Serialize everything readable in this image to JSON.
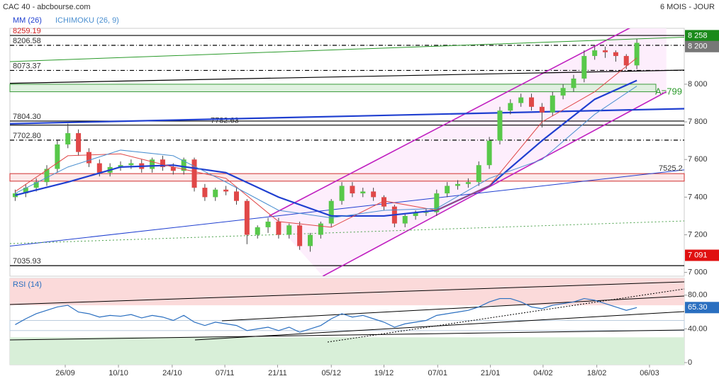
{
  "chart_data": {
    "type": "candlestick",
    "title": "CAC 40 - abcbourse.com",
    "subtitle": "6 MOIS - JOUR",
    "legend": [
      {
        "name": "MM (26)",
        "color": "#1f3fd0"
      },
      {
        "name": "ICHIMOKU (26, 9)",
        "color": "#4a8fd0"
      }
    ],
    "xlim": [
      -0.5,
      63.5
    ],
    "xticks": [
      {
        "value": 4.75,
        "label": "26/09"
      },
      {
        "value": 9.8,
        "label": "10/10"
      },
      {
        "value": 14.9,
        "label": "24/10"
      },
      {
        "value": 19.9,
        "label": "07/11"
      },
      {
        "value": 24.9,
        "label": "21/11"
      },
      {
        "value": 30,
        "label": "05/12"
      },
      {
        "value": 35,
        "label": "19/12"
      },
      {
        "value": 40.1,
        "label": "07/01"
      },
      {
        "value": 45.1,
        "label": "21/01"
      },
      {
        "value": 50.1,
        "label": "04/02"
      },
      {
        "value": 55.2,
        "label": "18/02"
      },
      {
        "value": 60.2,
        "label": "06/03"
      }
    ],
    "ylim": [
      6980,
      8297
    ],
    "yticks": [
      {
        "value": 7000,
        "label": "7 000"
      },
      {
        "value": 7200,
        "label": "7 200"
      },
      {
        "value": 7400,
        "label": "7 400"
      },
      {
        "value": 7600,
        "label": "7 600"
      },
      {
        "value": 7800,
        "label": "7 800"
      },
      {
        "value": 8000,
        "label": "8 000"
      }
    ],
    "open": [
      7400,
      7420,
      7450,
      7480,
      7550,
      7680,
      7740,
      7640,
      7580,
      7530,
      7560,
      7570,
      7580,
      7550,
      7600,
      7560,
      7540,
      7600,
      7450,
      7400,
      7440,
      7430,
      7380,
      7200,
      7240,
      7270,
      7200,
      7250,
      7140,
      7200,
      7260,
      7380,
      7460,
      7420,
      7430,
      7400,
      7350,
      7260,
      7300,
      7320,
      7320,
      7420,
      7460,
      7470,
      7480,
      7570,
      7700,
      7860,
      7900,
      7930,
      7880,
      7850,
      7940,
      7980,
      8030,
      8150,
      8180,
      8170,
      8150,
      8100
    ],
    "high": [
      7440,
      7470,
      7500,
      7570,
      7700,
      7790,
      7760,
      7660,
      7600,
      7580,
      7590,
      7600,
      7600,
      7610,
      7620,
      7580,
      7610,
      7610,
      7470,
      7450,
      7460,
      7450,
      7390,
      7250,
      7290,
      7290,
      7260,
      7270,
      7210,
      7270,
      7390,
      7480,
      7480,
      7450,
      7450,
      7410,
      7360,
      7310,
      7330,
      7340,
      7440,
      7480,
      7490,
      7500,
      7590,
      7720,
      7880,
      7920,
      7950,
      7950,
      7900,
      7960,
      8000,
      8050,
      8180,
      8200,
      8200,
      8180,
      8160,
      8240
    ],
    "low": [
      7380,
      7400,
      7430,
      7460,
      7530,
      7660,
      7620,
      7560,
      7510,
      7510,
      7540,
      7550,
      7530,
      7530,
      7540,
      7520,
      7520,
      7430,
      7380,
      7380,
      7410,
      7360,
      7150,
      7180,
      7210,
      7180,
      7180,
      7120,
      7110,
      7180,
      7240,
      7360,
      7400,
      7400,
      7380,
      7330,
      7240,
      7240,
      7280,
      7300,
      7300,
      7400,
      7440,
      7450,
      7460,
      7550,
      7680,
      7840,
      7880,
      7860,
      7770,
      7830,
      7920,
      7960,
      8010,
      8130,
      8140,
      8120,
      8080,
      8080
    ],
    "close": [
      7420,
      7450,
      7480,
      7550,
      7680,
      7740,
      7640,
      7580,
      7530,
      7560,
      7570,
      7580,
      7550,
      7600,
      7560,
      7540,
      7600,
      7450,
      7400,
      7440,
      7430,
      7380,
      7200,
      7240,
      7270,
      7200,
      7250,
      7140,
      7200,
      7260,
      7380,
      7460,
      7420,
      7430,
      7400,
      7350,
      7260,
      7300,
      7320,
      7320,
      7420,
      7460,
      7470,
      7480,
      7570,
      7700,
      7860,
      7900,
      7930,
      7880,
      7850,
      7940,
      7980,
      8030,
      8150,
      8180,
      8170,
      8150,
      8100,
      8220
    ],
    "up_color": "#58c84a",
    "down_color": "#e04848",
    "lines": [
      {
        "name": "MM (26)",
        "color": "#1f3fd0",
        "width": 2.2,
        "x": [
          0,
          5,
          10,
          15,
          20,
          25,
          30,
          35,
          40,
          45,
          50,
          55,
          59
        ],
        "values": [
          7410,
          7480,
          7560,
          7570,
          7530,
          7400,
          7300,
          7300,
          7330,
          7460,
          7700,
          7920,
          8020
        ]
      },
      {
        "name": "ICHIMOKU (26, 9)",
        "color": "#e04848",
        "width": 1,
        "x": [
          0,
          5,
          10,
          15,
          20,
          25,
          30,
          35,
          40,
          45,
          50,
          55,
          59
        ],
        "values": [
          7430,
          7620,
          7630,
          7560,
          7500,
          7270,
          7240,
          7380,
          7330,
          7460,
          7800,
          7960,
          8140
        ]
      },
      {
        "name": "ICHIMOKU (26, 9)",
        "color": "#4a8fd0",
        "width": 1,
        "x": [
          0,
          5,
          10,
          15,
          20,
          25,
          30,
          35,
          40,
          45,
          50,
          55,
          59
        ],
        "values": [
          7420,
          7560,
          7650,
          7620,
          7480,
          7330,
          7290,
          7330,
          7340,
          7500,
          7600,
          7840,
          7990
        ]
      }
    ],
    "levels": [
      {
        "value": 8259.19,
        "label": "8259.19",
        "color": "#000",
        "dash": ""
      },
      {
        "value": 8206.58,
        "label": "8206.58",
        "color": "#000",
        "dash": "6 3 1 3"
      },
      {
        "value": 8073.37,
        "label": "8073.37",
        "color": "#000",
        "dash": "6 3 1 3"
      },
      {
        "value": 7804.3,
        "label": "7804.30",
        "color": "#000",
        "dash": ""
      },
      {
        "value": 7782.63,
        "label": "7782.63",
        "color": "#000",
        "dash": ""
      },
      {
        "value": 7702.8,
        "label": "7702.80",
        "color": "#000",
        "dash": "6 3 1 3"
      },
      {
        "value": 7035.93,
        "label": "7035.93",
        "color": "#000",
        "dash": ""
      }
    ],
    "zones": [
      {
        "from": 7960,
        "to": 8000,
        "color": "#d8efd8",
        "stroke": "#3a9a3a",
        "label": "A=799"
      },
      {
        "from": 7485,
        "to": 7525,
        "color": "#fbe4e4",
        "stroke": "#d03030"
      }
    ],
    "trendlines": [
      {
        "x": [
          24.1,
          61.8
        ],
        "values": [
          7300,
          8400
        ],
        "color": "#c020c0",
        "width": 1.6
      },
      {
        "x": [
          29.2,
          61.8
        ],
        "values": [
          6980,
          7960
        ],
        "color": "#c020c0",
        "width": 1.6
      },
      {
        "x": [
          -0.5,
          63.5
        ],
        "values": [
          8120,
          8250
        ],
        "color": "#2a9a2a",
        "width": 1
      },
      {
        "x": [
          -0.5,
          63.5
        ],
        "values": [
          7790,
          7870
        ],
        "color": "#1f3fd0",
        "width": 2.2
      },
      {
        "x": [
          -0.5,
          63.5
        ],
        "values": [
          7140,
          7545
        ],
        "color": "#1f3fd0",
        "width": 1
      },
      {
        "x": [
          -0.5,
          63.5
        ],
        "values": [
          8005,
          8075
        ],
        "color": "#000",
        "width": 1.2
      }
    ],
    "trend_label": {
      "value": 7525.2,
      "label": "7525.2"
    },
    "badges": [
      {
        "value": 8258,
        "label": "8 258",
        "color": "#1a8a1a"
      },
      {
        "value": 8200,
        "label": "8 200",
        "color": "#777"
      },
      {
        "value": 7091,
        "label": "7 091",
        "color": "#e01010"
      }
    ],
    "rsi": {
      "name": "RSI (14)",
      "color": "#2a6fc0",
      "ylim": [
        0,
        100
      ],
      "yticks": [
        {
          "value": 0,
          "label": "0"
        },
        {
          "value": 40,
          "label": "40.00"
        },
        {
          "value": 80,
          "label": "80.00"
        }
      ],
      "values": [
        45,
        52,
        58,
        62,
        66,
        68,
        60,
        58,
        54,
        56,
        55,
        57,
        53,
        56,
        54,
        50,
        56,
        48,
        44,
        48,
        46,
        44,
        38,
        40,
        42,
        38,
        42,
        36,
        40,
        44,
        52,
        58,
        54,
        56,
        52,
        48,
        42,
        46,
        48,
        50,
        56,
        58,
        60,
        62,
        66,
        72,
        76,
        76,
        72,
        66,
        64,
        68,
        70,
        72,
        76,
        74,
        70,
        66,
        62,
        65.3
      ],
      "last": {
        "value": 65.3,
        "label": "65.30"
      }
    }
  }
}
